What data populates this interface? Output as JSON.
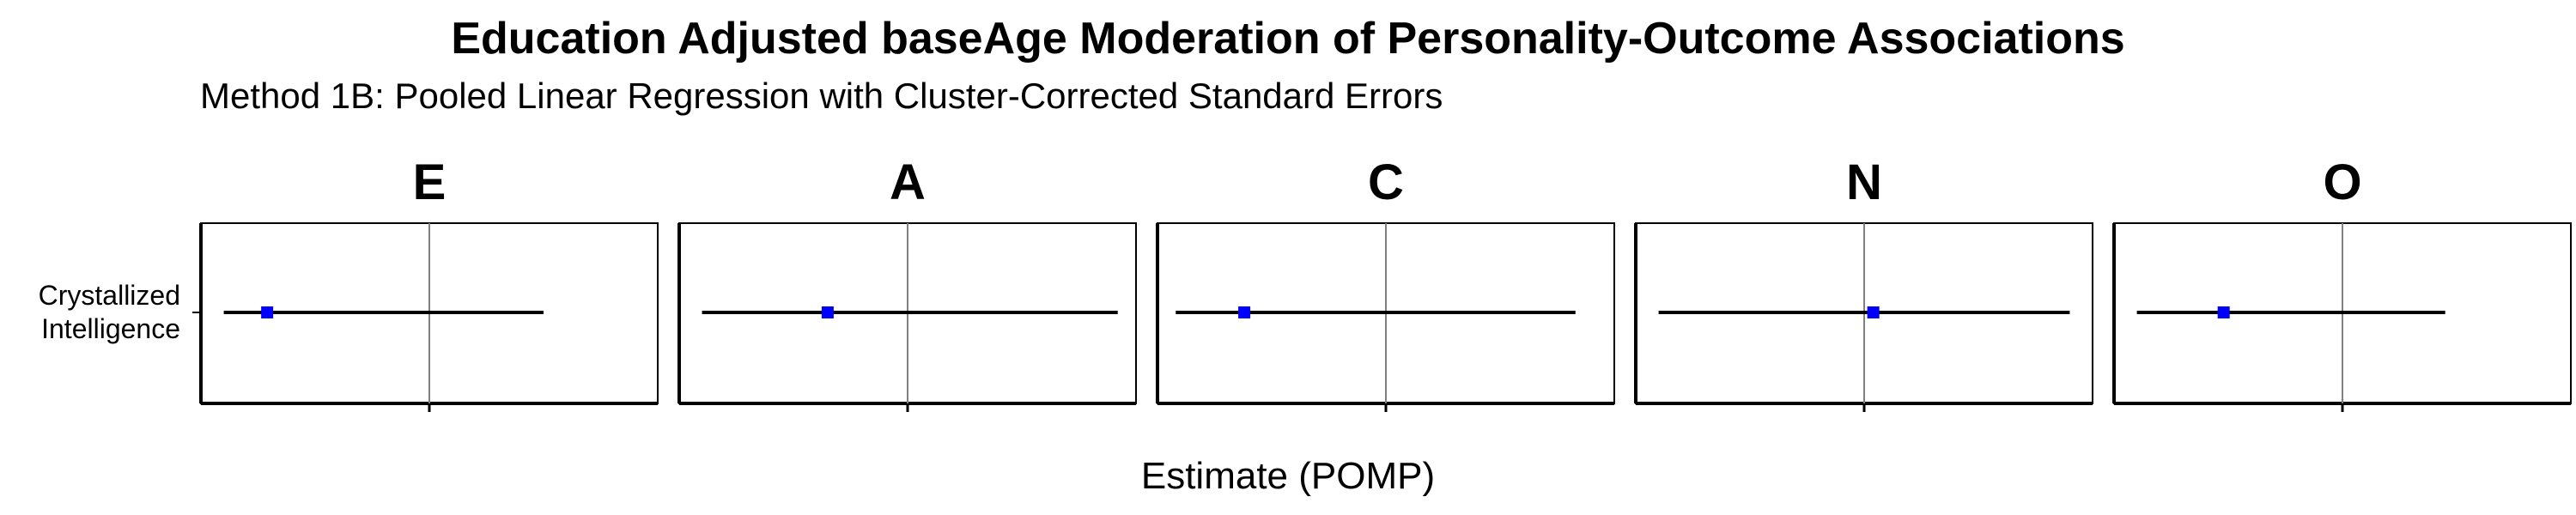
{
  "title": "Education Adjusted baseAge Moderation of Personality-Outcome Associations",
  "subtitle": "Method 1B: Pooled Linear Regression with Cluster-Corrected Standard Errors",
  "colors": {
    "point": "#0000ff",
    "interval": "#000000",
    "zero_line": "#808080",
    "frame": "#000000"
  },
  "chart_data": {
    "type": "scatter",
    "title": "Education Adjusted baseAge Moderation of Personality-Outcome Associations",
    "subtitle": "Method 1B: Pooled Linear Regression with Cluster-Corrected Standard Errors",
    "xlabel": "Estimate (POMP)",
    "ylabel": "",
    "y_categories": [
      "Crystallized\nIntelligence"
    ],
    "y_category_lines": [
      "Crystallized",
      "Intelligence"
    ],
    "grid": false,
    "reference_line": 0,
    "facets": [
      {
        "name": "E",
        "outcome": "Crystallized Intelligence",
        "estimate": -0.71,
        "lower": -0.9,
        "upper": 0.5,
        "xlim": [
          -1,
          1
        ]
      },
      {
        "name": "A",
        "outcome": "Crystallized Intelligence",
        "estimate": -0.35,
        "lower": -0.9,
        "upper": 0.92,
        "xlim": [
          -1,
          1
        ]
      },
      {
        "name": "C",
        "outcome": "Crystallized Intelligence",
        "estimate": -0.62,
        "lower": -0.92,
        "upper": 0.83,
        "xlim": [
          -1,
          1
        ]
      },
      {
        "name": "N",
        "outcome": "Crystallized Intelligence",
        "estimate": 0.04,
        "lower": -0.9,
        "upper": 0.9,
        "xlim": [
          -1,
          1
        ]
      },
      {
        "name": "O",
        "outcome": "Crystallized Intelligence",
        "estimate": -0.52,
        "lower": -0.9,
        "upper": 0.45,
        "xlim": [
          -1,
          1
        ]
      }
    ]
  }
}
